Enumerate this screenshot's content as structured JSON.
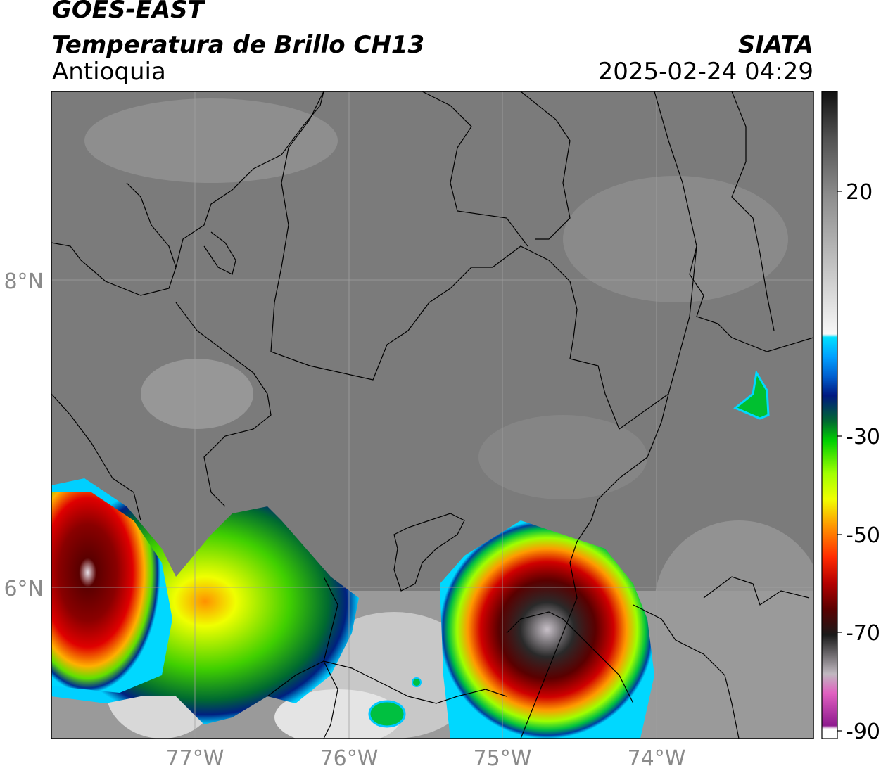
{
  "header": {
    "satellite": "GOES-EAST",
    "product": "Temperatura de Brillo CH13",
    "region": "Antioquia",
    "organization": "SIATA",
    "datetime": "2025-02-24 04:29"
  },
  "map": {
    "lat_ticks": [
      "8°N",
      "6°N"
    ],
    "lon_ticks": [
      "77°W",
      "76°W",
      "75°W",
      "74°W"
    ],
    "label_color": "#8a8a8a",
    "background_gray": "#7a7a7a",
    "border_color": "#000000"
  },
  "colorbar": {
    "tick_labels": [
      "20",
      "-30",
      "-50",
      "-70",
      "-90"
    ],
    "colors": [
      "#ffffff",
      "#8e1a8e",
      "#e060c0",
      "#b0a8b0",
      "#2a2a2a",
      "#5a0000",
      "#b40000",
      "#ff2a00",
      "#ff9a00",
      "#f0ff00",
      "#a0ff00",
      "#00d000",
      "#006a30",
      "#001880",
      "#00a0ff",
      "#00e0ff",
      "#f0f0f0",
      "#8c8c8c",
      "#1a1a1a"
    ]
  },
  "legend": {}
}
